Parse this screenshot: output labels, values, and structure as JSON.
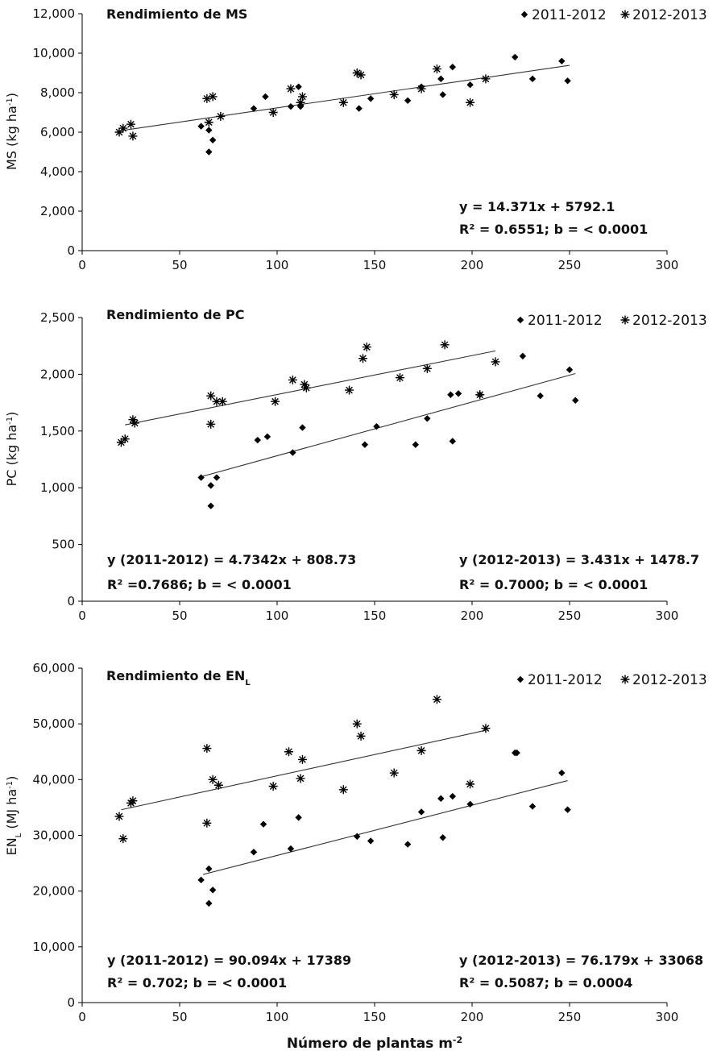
{
  "chart_data": [
    {
      "type": "scatter",
      "title": "Rendimiento de MS",
      "title_sub": "",
      "ylabel": "MS (kg ha",
      "ylabel_sup": "-1",
      "ylabel_tail": ")",
      "xlabel": "",
      "xlim": [
        0,
        300
      ],
      "ylim": [
        0,
        12000
      ],
      "xticks": [
        0,
        50,
        100,
        150,
        200,
        250,
        300
      ],
      "xtick_labels": [
        "0",
        "50",
        "100",
        "150",
        "200",
        "250",
        "300"
      ],
      "yticks": [
        0,
        2000,
        4000,
        6000,
        8000,
        10000,
        12000
      ],
      "ytick_labels": [
        "0",
        "2,000",
        "4,000",
        "6,000",
        "8,000",
        "10,000",
        "12,000"
      ],
      "legend": [
        "2011-2012",
        "2012-2013"
      ],
      "series": [
        {
          "name": "2011-2012",
          "marker": "diamond",
          "x": [
            61,
            65,
            65,
            67,
            88,
            94,
            107,
            111,
            112,
            142,
            148,
            167,
            174,
            184,
            185,
            190,
            199,
            222,
            231,
            246,
            249
          ],
          "y": [
            6300,
            6100,
            5000,
            5600,
            7200,
            7800,
            7300,
            8300,
            7300,
            7200,
            7700,
            7600,
            8300,
            8700,
            7900,
            9300,
            8400,
            9800,
            8700,
            9600,
            8600
          ]
        },
        {
          "name": "2012-2013",
          "marker": "star",
          "x": [
            19,
            21,
            25,
            26,
            64,
            65,
            67,
            71,
            98,
            107,
            112,
            113,
            134,
            141,
            143,
            160,
            174,
            182,
            199,
            207
          ],
          "y": [
            6000,
            6200,
            6400,
            5800,
            7700,
            6500,
            7800,
            6800,
            7000,
            8200,
            7500,
            7800,
            7500,
            9000,
            8900,
            7900,
            8200,
            9200,
            7500,
            8700
          ]
        }
      ],
      "fits": [
        {
          "slope": 14.371,
          "intercept": 5792.1,
          "x_range": [
            20,
            250
          ]
        }
      ],
      "equations": [
        {
          "text": "y = 14.371x + 5792.1",
          "position": "lower-right"
        },
        {
          "text": "R² = 0.6551; b = < 0.0001",
          "position": "lower-right"
        }
      ]
    },
    {
      "type": "scatter",
      "title": "Rendimiento de PC",
      "title_sub": "",
      "ylabel": "PC (kg ha",
      "ylabel_sup": "-1",
      "ylabel_tail": ")",
      "xlabel": "",
      "xlim": [
        0,
        300
      ],
      "ylim": [
        0,
        2500
      ],
      "xticks": [
        0,
        50,
        100,
        150,
        200,
        250,
        300
      ],
      "xtick_labels": [
        "0",
        "50",
        "100",
        "150",
        "200",
        "250",
        "300"
      ],
      "yticks": [
        0,
        500,
        1000,
        1500,
        2000,
        2500
      ],
      "ytick_labels": [
        "0",
        "500",
        "1,000",
        "1,500",
        "2,000",
        "2,500"
      ],
      "legend": [
        "2011-2012",
        "2012-2013"
      ],
      "series": [
        {
          "name": "2011-2012",
          "marker": "diamond",
          "x": [
            61,
            66,
            66,
            69,
            90,
            95,
            108,
            113,
            145,
            151,
            171,
            177,
            189,
            190,
            193,
            204,
            226,
            235,
            250,
            253
          ],
          "y": [
            1090,
            1020,
            840,
            1090,
            1420,
            1450,
            1310,
            1530,
            1380,
            1540,
            1380,
            1610,
            1820,
            1410,
            1830,
            1820,
            2160,
            1810,
            2040,
            1770
          ]
        },
        {
          "name": "2012-2013",
          "marker": "star",
          "x": [
            20,
            22,
            26,
            27,
            66,
            66,
            69,
            72,
            99,
            108,
            114,
            115,
            137,
            144,
            146,
            163,
            177,
            186,
            204,
            212
          ],
          "y": [
            1400,
            1430,
            1600,
            1570,
            1810,
            1560,
            1760,
            1760,
            1760,
            1950,
            1910,
            1880,
            1860,
            2140,
            2240,
            1970,
            2050,
            2260,
            1820,
            2110
          ]
        }
      ],
      "fits": [
        {
          "slope": 4.7342,
          "intercept": 808.73,
          "x_range": [
            62,
            253
          ]
        },
        {
          "slope": 3.431,
          "intercept": 1478.7,
          "x_range": [
            22,
            212
          ]
        }
      ],
      "equations": [
        {
          "text": "y (2011-2012) = 4.7342x + 808.73",
          "position": "lower-left"
        },
        {
          "text": "R² =0.7686; b = < 0.0001",
          "position": "lower-left"
        },
        {
          "text": "y (2012-2013) = 3.431x + 1478.7",
          "position": "lower-right"
        },
        {
          "text": "R²  = 0.7000; b = < 0.0001",
          "position": "lower-right"
        }
      ]
    },
    {
      "type": "scatter",
      "title": "Rendimiento de EN",
      "title_sub": "L",
      "ylabel": "EN",
      "ylabel_sub": "L",
      "ylabel_mid": " (MJ ha",
      "ylabel_sup": "-1",
      "ylabel_tail": ")",
      "xlabel": "Número de plantas m",
      "xlabel_sup": "-2",
      "xlim": [
        0,
        300
      ],
      "ylim": [
        0,
        60000
      ],
      "xticks": [
        0,
        50,
        100,
        150,
        200,
        250,
        300
      ],
      "xtick_labels": [
        "0",
        "50",
        "100",
        "150",
        "200",
        "250",
        "300"
      ],
      "yticks": [
        0,
        10000,
        20000,
        30000,
        40000,
        50000,
        60000
      ],
      "ytick_labels": [
        "0",
        "10,000",
        "20,000",
        "30,000",
        "40,000",
        "50,000",
        "60,000"
      ],
      "legend": [
        "2011-2012",
        "2012-2013"
      ],
      "series": [
        {
          "name": "2011-2012",
          "marker": "diamond",
          "x": [
            61,
            65,
            65,
            67,
            88,
            93,
            107,
            111,
            141,
            148,
            167,
            174,
            184,
            185,
            190,
            199,
            222,
            223,
            231,
            246,
            249
          ],
          "y": [
            22000,
            24000,
            17800,
            20200,
            27000,
            32000,
            27600,
            33200,
            29800,
            29000,
            28400,
            34200,
            36600,
            29600,
            37000,
            35600,
            44800,
            44800,
            35200,
            41200,
            34600
          ]
        },
        {
          "name": "2012-2013",
          "marker": "star",
          "x": [
            19,
            21,
            25,
            26,
            64,
            64,
            67,
            70,
            98,
            106,
            112,
            113,
            134,
            141,
            143,
            160,
            174,
            182,
            199,
            207
          ],
          "y": [
            33400,
            29400,
            35800,
            36200,
            45600,
            32200,
            40000,
            39000,
            38800,
            45000,
            40200,
            43600,
            38200,
            50000,
            47800,
            41200,
            45200,
            54400,
            39200,
            49200
          ]
        }
      ],
      "fits": [
        {
          "slope": 90.094,
          "intercept": 17389,
          "x_range": [
            62,
            249
          ]
        },
        {
          "slope": 76.179,
          "intercept": 33068,
          "x_range": [
            20,
            207
          ]
        }
      ],
      "equations": [
        {
          "text": "y (2011-2012) = 90.094x + 17389",
          "position": "lower-left"
        },
        {
          "text": "R² = 0.702; b = < 0.0001",
          "position": "lower-left"
        },
        {
          "text": "y (2012-2013) = 76.179x + 33068",
          "position": "lower-right"
        },
        {
          "text": "R² = 0.5087; b = 0.0004",
          "position": "lower-right"
        }
      ]
    }
  ]
}
